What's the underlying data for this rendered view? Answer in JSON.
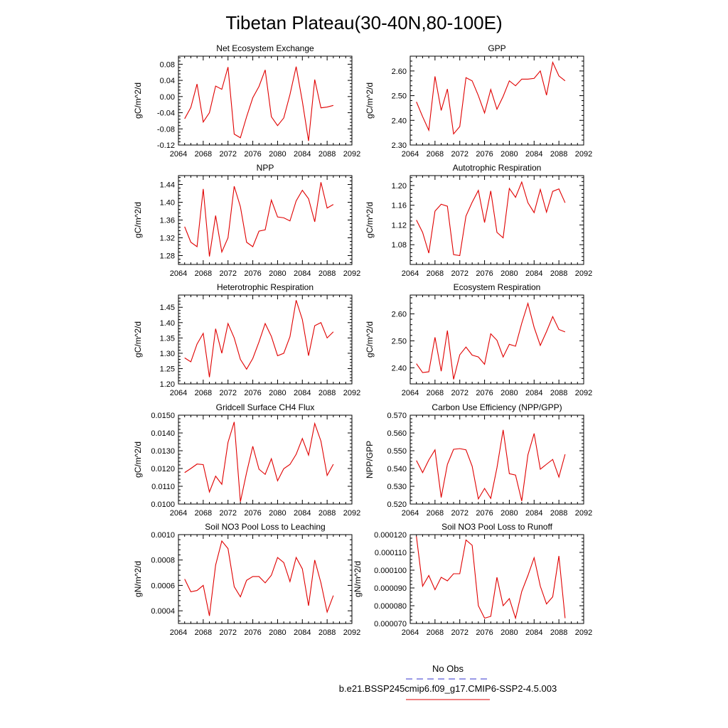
{
  "title": "Tibetan Plateau(30-40N,80-100E)",
  "legend": [
    {
      "label": "No Obs",
      "color": "#3333cc",
      "style": "dashed"
    },
    {
      "label": "b.e21.BSSP245cmip6.f09_g17.CMIP6-SSP2-4.5.003",
      "color": "#e00000",
      "style": "solid"
    }
  ],
  "chart_data": [
    {
      "type": "line",
      "title": "Net Ecosystem Exchange",
      "ylabel": "gC/m^2/d",
      "xlim": [
        2064,
        2092
      ],
      "xticks": [
        "2064",
        "2068",
        "2072",
        "2076",
        "2080",
        "2084",
        "2088",
        "2092"
      ],
      "ylim": [
        -0.12,
        0.1
      ],
      "yticks": [
        "0.08",
        "0.04",
        "0.00",
        "-0.04",
        "-0.08",
        "-0.12"
      ],
      "x": [
        2065,
        2066,
        2067,
        2068,
        2069,
        2070,
        2071,
        2072,
        2073,
        2074,
        2075,
        2076,
        2077,
        2078,
        2079,
        2080,
        2081,
        2082,
        2083,
        2084,
        2085,
        2086,
        2087,
        2088,
        2089
      ],
      "values": [
        -0.055,
        -0.027,
        0.031,
        -0.063,
        -0.04,
        0.026,
        0.018,
        0.073,
        -0.093,
        -0.102,
        -0.05,
        -0.003,
        0.025,
        0.066,
        -0.05,
        -0.072,
        -0.053,
        0.005,
        0.074,
        -0.012,
        -0.11,
        0.042,
        -0.028,
        -0.026,
        -0.022
      ],
      "color": "#e00000"
    },
    {
      "type": "line",
      "title": "GPP",
      "ylabel": "gC/m^2/d",
      "xlim": [
        2064,
        2092
      ],
      "xticks": [
        "2064",
        "2068",
        "2072",
        "2076",
        "2080",
        "2084",
        "2088",
        "2092"
      ],
      "ylim": [
        2.3,
        2.66
      ],
      "yticks": [
        "2.60",
        "2.50",
        "2.40",
        "2.30"
      ],
      "x": [
        2065,
        2066,
        2067,
        2068,
        2069,
        2070,
        2071,
        2072,
        2073,
        2074,
        2075,
        2076,
        2077,
        2078,
        2079,
        2080,
        2081,
        2082,
        2083,
        2084,
        2085,
        2086,
        2087,
        2088,
        2089
      ],
      "values": [
        2.475,
        2.415,
        2.36,
        2.578,
        2.44,
        2.527,
        2.345,
        2.375,
        2.573,
        2.56,
        2.5,
        2.43,
        2.525,
        2.445,
        2.497,
        2.56,
        2.54,
        2.567,
        2.567,
        2.57,
        2.6,
        2.502,
        2.635,
        2.58,
        2.56
      ],
      "color": "#e00000"
    },
    {
      "type": "line",
      "title": "NPP",
      "ylabel": "gC/m^2/d",
      "xlim": [
        2064,
        2092
      ],
      "xticks": [
        "2064",
        "2068",
        "2072",
        "2076",
        "2080",
        "2084",
        "2088",
        "2092"
      ],
      "ylim": [
        1.26,
        1.46
      ],
      "yticks": [
        "1.44",
        "1.40",
        "1.36",
        "1.32",
        "1.28"
      ],
      "x": [
        2065,
        2066,
        2067,
        2068,
        2069,
        2070,
        2071,
        2072,
        2073,
        2074,
        2075,
        2076,
        2077,
        2078,
        2079,
        2080,
        2081,
        2082,
        2083,
        2084,
        2085,
        2086,
        2087,
        2088,
        2089
      ],
      "values": [
        1.345,
        1.31,
        1.3,
        1.43,
        1.278,
        1.37,
        1.288,
        1.32,
        1.436,
        1.39,
        1.31,
        1.3,
        1.335,
        1.338,
        1.405,
        1.367,
        1.365,
        1.358,
        1.403,
        1.427,
        1.408,
        1.356,
        1.445,
        1.387,
        1.395
      ],
      "color": "#e00000"
    },
    {
      "type": "line",
      "title": "Autotrophic Respiration",
      "ylabel": "gC/m^2/d",
      "xlim": [
        2064,
        2092
      ],
      "xticks": [
        "2064",
        "2068",
        "2072",
        "2076",
        "2080",
        "2084",
        "2088",
        "2092"
      ],
      "ylim": [
        1.04,
        1.22
      ],
      "yticks": [
        "1.20",
        "1.16",
        "1.12",
        "1.08"
      ],
      "x": [
        2065,
        2066,
        2067,
        2068,
        2069,
        2070,
        2071,
        2072,
        2073,
        2074,
        2075,
        2076,
        2077,
        2078,
        2079,
        2080,
        2081,
        2082,
        2083,
        2084,
        2085,
        2086,
        2087,
        2088,
        2089
      ],
      "values": [
        1.13,
        1.105,
        1.063,
        1.148,
        1.162,
        1.158,
        1.06,
        1.058,
        1.138,
        1.166,
        1.19,
        1.125,
        1.189,
        1.105,
        1.094,
        1.194,
        1.176,
        1.207,
        1.165,
        1.145,
        1.192,
        1.146,
        1.188,
        1.193,
        1.165
      ],
      "color": "#e00000"
    },
    {
      "type": "line",
      "title": "Heterotrophic Respiration",
      "ylabel": "gC/m^2/d",
      "xlim": [
        2064,
        2092
      ],
      "xticks": [
        "2064",
        "2068",
        "2072",
        "2076",
        "2080",
        "2084",
        "2088",
        "2092"
      ],
      "ylim": [
        1.2,
        1.49
      ],
      "yticks": [
        "1.45",
        "1.40",
        "1.35",
        "1.30",
        "1.25",
        "1.20"
      ],
      "x": [
        2065,
        2066,
        2067,
        2068,
        2069,
        2070,
        2071,
        2072,
        2073,
        2074,
        2075,
        2076,
        2077,
        2078,
        2079,
        2080,
        2081,
        2082,
        2083,
        2084,
        2085,
        2086,
        2087,
        2088,
        2089
      ],
      "values": [
        1.285,
        1.272,
        1.33,
        1.365,
        1.222,
        1.38,
        1.3,
        1.397,
        1.35,
        1.28,
        1.248,
        1.283,
        1.337,
        1.397,
        1.355,
        1.292,
        1.3,
        1.354,
        1.473,
        1.41,
        1.292,
        1.39,
        1.4,
        1.35,
        1.37
      ],
      "color": "#e00000"
    },
    {
      "type": "line",
      "title": "Ecosystem Respiration",
      "ylabel": "gC/m^2/d",
      "xlim": [
        2064,
        2092
      ],
      "xticks": [
        "2064",
        "2068",
        "2072",
        "2076",
        "2080",
        "2084",
        "2088",
        "2092"
      ],
      "ylim": [
        2.34,
        2.67
      ],
      "yticks": [
        "2.60",
        "2.50",
        "2.40"
      ],
      "x": [
        2065,
        2066,
        2067,
        2068,
        2069,
        2070,
        2071,
        2072,
        2073,
        2074,
        2075,
        2076,
        2077,
        2078,
        2079,
        2080,
        2081,
        2082,
        2083,
        2084,
        2085,
        2086,
        2087,
        2088,
        2089
      ],
      "values": [
        2.415,
        2.382,
        2.385,
        2.513,
        2.387,
        2.538,
        2.357,
        2.448,
        2.477,
        2.447,
        2.44,
        2.413,
        2.526,
        2.502,
        2.44,
        2.487,
        2.48,
        2.565,
        2.639,
        2.55,
        2.483,
        2.534,
        2.59,
        2.542,
        2.533
      ],
      "color": "#e00000"
    },
    {
      "type": "line",
      "title": "Gridcell Surface CH4 Flux",
      "ylabel": "gC/m^2/d",
      "xlim": [
        2064,
        2092
      ],
      "xticks": [
        "2064",
        "2068",
        "2072",
        "2076",
        "2080",
        "2084",
        "2088",
        "2092"
      ],
      "ylim": [
        0.01,
        0.015
      ],
      "yticks": [
        "0.0150",
        "0.0140",
        "0.0130",
        "0.0120",
        "0.0110",
        "0.0100"
      ],
      "x": [
        2065,
        2066,
        2067,
        2068,
        2069,
        2070,
        2071,
        2072,
        2073,
        2074,
        2075,
        2076,
        2077,
        2078,
        2079,
        2080,
        2081,
        2082,
        2083,
        2084,
        2085,
        2086,
        2087,
        2088,
        2089
      ],
      "values": [
        0.01177,
        0.012,
        0.01225,
        0.01222,
        0.01068,
        0.01157,
        0.01111,
        0.01347,
        0.01462,
        0.01013,
        0.01177,
        0.01325,
        0.01196,
        0.01167,
        0.01255,
        0.01131,
        0.01199,
        0.01223,
        0.0128,
        0.01369,
        0.01275,
        0.01453,
        0.01354,
        0.01161,
        0.01224
      ],
      "color": "#e00000"
    },
    {
      "type": "line",
      "title": "Carbon Use Efficiency (NPP/GPP)",
      "ylabel": "NPP/GPP",
      "xlim": [
        2064,
        2092
      ],
      "xticks": [
        "2064",
        "2068",
        "2072",
        "2076",
        "2080",
        "2084",
        "2088",
        "2092"
      ],
      "ylim": [
        0.52,
        0.57
      ],
      "yticks": [
        "0.570",
        "0.560",
        "0.550",
        "0.540",
        "0.530",
        "0.520"
      ],
      "x": [
        2065,
        2066,
        2067,
        2068,
        2069,
        2070,
        2071,
        2072,
        2073,
        2074,
        2075,
        2076,
        2077,
        2078,
        2079,
        2080,
        2081,
        2082,
        2083,
        2084,
        2085,
        2086,
        2087,
        2088,
        2089
      ],
      "values": [
        0.5445,
        0.5377,
        0.5448,
        0.5505,
        0.5237,
        0.5423,
        0.5508,
        0.5512,
        0.5505,
        0.5413,
        0.5229,
        0.5288,
        0.5232,
        0.5404,
        0.5617,
        0.5371,
        0.5363,
        0.5217,
        0.5477,
        0.5597,
        0.5396,
        0.5424,
        0.5451,
        0.5352,
        0.548
      ],
      "color": "#e00000"
    },
    {
      "type": "line",
      "title": "Soil NO3 Pool Loss to Leaching",
      "ylabel": "gN/m^2/d",
      "xlim": [
        2064,
        2092
      ],
      "xticks": [
        "2064",
        "2068",
        "2072",
        "2076",
        "2080",
        "2084",
        "2088",
        "2092"
      ],
      "ylim": [
        0.0003,
        0.001
      ],
      "yticks": [
        "0.0010",
        "0.0008",
        "0.0006",
        "0.0004"
      ],
      "x": [
        2065,
        2066,
        2067,
        2068,
        2069,
        2070,
        2071,
        2072,
        2073,
        2074,
        2075,
        2076,
        2077,
        2078,
        2079,
        2080,
        2081,
        2082,
        2083,
        2084,
        2085,
        2086,
        2087,
        2088,
        2089
      ],
      "values": [
        0.00065,
        0.00055,
        0.00056,
        0.0006,
        0.00036,
        0.00076,
        0.00095,
        0.00089,
        0.00059,
        0.00051,
        0.00064,
        0.00067,
        0.00067,
        0.00062,
        0.00068,
        0.00082,
        0.00078,
        0.00063,
        0.00082,
        0.00073,
        0.00044,
        0.0008,
        0.00062,
        0.00039,
        0.00052
      ],
      "color": "#e00000"
    },
    {
      "type": "line",
      "title": "Soil NO3 Pool Loss to Runoff",
      "ylabel": "gN/m^2/d",
      "xlim": [
        2064,
        2092
      ],
      "xticks": [
        "2064",
        "2068",
        "2072",
        "2076",
        "2080",
        "2084",
        "2088",
        "2092"
      ],
      "ylim": [
        7e-05,
        0.00012
      ],
      "yticks": [
        "0.000120",
        "0.000110",
        "0.000100",
        "0.000090",
        "0.000080",
        "0.000070"
      ],
      "x": [
        2065,
        2066,
        2067,
        2068,
        2069,
        2070,
        2071,
        2072,
        2073,
        2074,
        2075,
        2076,
        2077,
        2078,
        2079,
        2080,
        2081,
        2082,
        2083,
        2084,
        2085,
        2086,
        2087,
        2088,
        2089
      ],
      "values": [
        0.000119,
        9.1e-05,
        9.7e-05,
        8.9e-05,
        9.6e-05,
        9.4e-05,
        9.8e-05,
        9.8e-05,
        0.000117,
        0.000114,
        8e-05,
        7.3e-05,
        7.4e-05,
        9.6e-05,
        8e-05,
        8.4e-05,
        7.3e-05,
        8.8e-05,
        9.7e-05,
        0.000107,
        9.1e-05,
        8.1e-05,
        8.5e-05,
        0.000108,
        7.3e-05
      ],
      "color": "#e00000"
    }
  ]
}
